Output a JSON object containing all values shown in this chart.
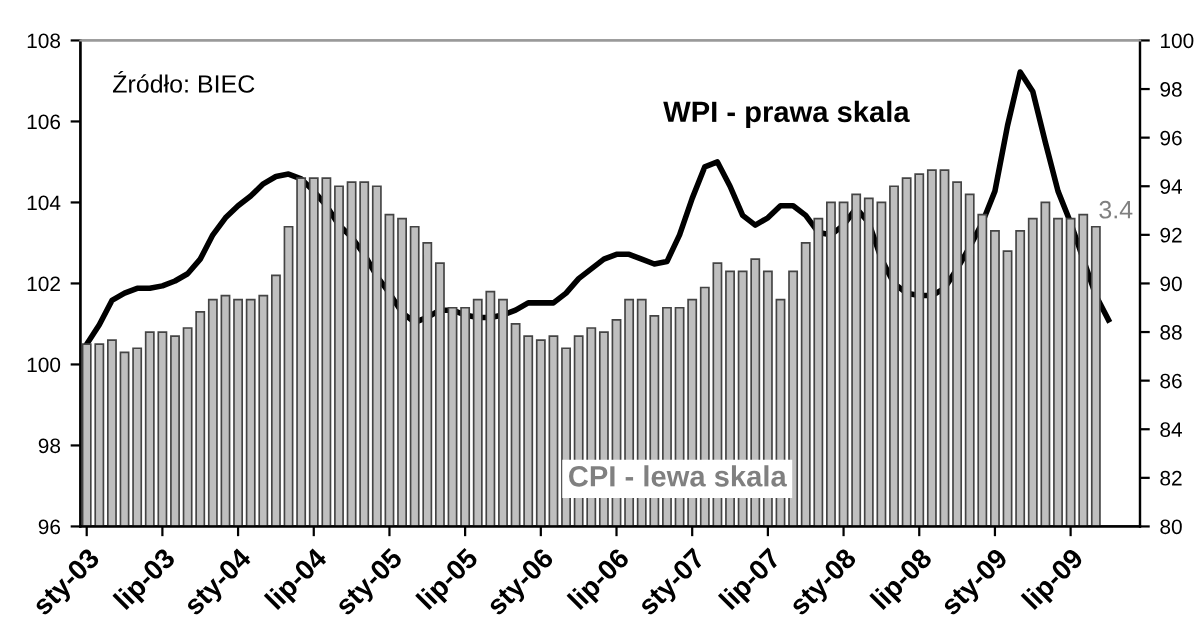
{
  "chart_data": {
    "type": "bar",
    "categories": [
      "sty-03",
      null,
      null,
      null,
      null,
      null,
      "lip-03",
      null,
      null,
      null,
      null,
      null,
      "sty-04",
      null,
      null,
      null,
      null,
      null,
      "lip-04",
      null,
      null,
      null,
      null,
      null,
      "sty-05",
      null,
      null,
      null,
      null,
      null,
      "lip-05",
      null,
      null,
      null,
      null,
      null,
      "sty-06",
      null,
      null,
      null,
      null,
      null,
      "lip-06",
      null,
      null,
      null,
      null,
      null,
      "sty-07",
      null,
      null,
      null,
      null,
      null,
      "lip-07",
      null,
      null,
      null,
      null,
      null,
      "sty-08",
      null,
      null,
      null,
      null,
      null,
      "lip-08",
      null,
      null,
      null,
      null,
      null,
      "sty-09",
      null,
      null,
      null,
      null,
      null,
      "lip-09",
      null,
      null,
      null,
      null,
      null
    ],
    "series": [
      {
        "name": "CPI - lewa skala",
        "color": "#bfbfbf",
        "values": [
          100.5,
          100.5,
          100.6,
          100.3,
          100.4,
          100.8,
          100.8,
          100.7,
          100.9,
          101.3,
          101.6,
          101.7,
          101.6,
          101.6,
          101.7,
          102.2,
          103.4,
          104.6,
          104.6,
          104.6,
          104.4,
          104.5,
          104.5,
          104.4,
          103.7,
          103.6,
          103.4,
          103.0,
          102.5,
          101.4,
          101.4,
          101.6,
          101.8,
          101.6,
          101.0,
          100.7,
          100.6,
          100.7,
          100.4,
          100.7,
          100.9,
          100.8,
          101.1,
          101.6,
          101.6,
          101.2,
          101.4,
          101.4,
          101.6,
          101.9,
          102.5,
          102.3,
          102.3,
          102.6,
          102.3,
          101.6,
          102.3,
          103.0,
          103.6,
          104.0,
          104.0,
          104.2,
          104.1,
          104.0,
          104.4,
          104.6,
          104.7,
          104.8,
          104.8,
          104.5,
          104.2,
          103.7,
          103.3,
          102.8,
          103.3,
          103.6,
          104.0,
          103.6,
          103.6,
          103.7,
          103.4,
          null,
          null,
          null
        ]
      },
      {
        "name": "WPI - prawa skala",
        "type": "line",
        "axis": "y2",
        "color": "#000000",
        "values": [
          87.5,
          88.3,
          89.3,
          89.6,
          89.8,
          89.8,
          89.9,
          90.1,
          90.4,
          91.0,
          92.0,
          92.7,
          93.2,
          93.6,
          94.1,
          94.4,
          94.5,
          94.3,
          93.8,
          93.2,
          92.4,
          91.9,
          91.2,
          90.3,
          89.6,
          88.8,
          88.4,
          88.6,
          88.9,
          88.9,
          88.7,
          88.6,
          88.6,
          88.7,
          88.9,
          89.2,
          89.2,
          89.2,
          89.6,
          90.2,
          90.6,
          91.0,
          91.2,
          91.2,
          91.0,
          90.8,
          90.9,
          92.0,
          93.5,
          94.8,
          95.0,
          94.0,
          92.8,
          92.4,
          92.7,
          93.2,
          93.2,
          92.8,
          92.1,
          92.0,
          92.4,
          93.1,
          92.5,
          91.0,
          90.0,
          89.6,
          89.5,
          89.5,
          89.8,
          90.6,
          91.5,
          92.5,
          93.8,
          96.5,
          98.7,
          97.9,
          95.8,
          93.8,
          92.5,
          91.0,
          89.5,
          88.5,
          null,
          null
        ]
      }
    ],
    "ylim": [
      96,
      108
    ],
    "yticks": [
      96,
      98,
      100,
      102,
      104,
      106,
      108
    ],
    "y2lim": [
      80,
      100
    ],
    "y2ticks": [
      80,
      82,
      84,
      86,
      88,
      90,
      92,
      94,
      96,
      98,
      100
    ],
    "annotations": [
      "Źródło: BIEC",
      "3.4"
    ],
    "grid": false,
    "legend": false,
    "line_style": "solid",
    "marker": "none"
  }
}
